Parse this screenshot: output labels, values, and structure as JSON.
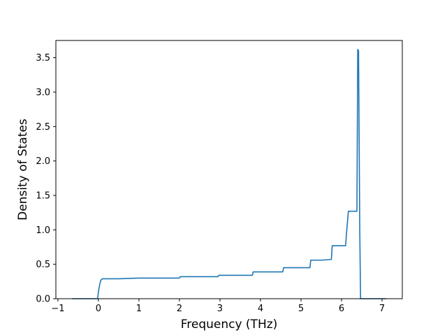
{
  "chart_data": {
    "type": "line",
    "title": "",
    "xlabel": "Frequency (THz)",
    "ylabel": "Density of States",
    "xlim": [
      -1.05,
      7.5
    ],
    "ylim": [
      0,
      3.75
    ],
    "xticks": [
      -1,
      0,
      1,
      2,
      3,
      4,
      5,
      6,
      7
    ],
    "xtick_labels": [
      "−1",
      "0",
      "1",
      "2",
      "3",
      "4",
      "5",
      "6",
      "7"
    ],
    "yticks": [
      0,
      0.5,
      1.0,
      1.5,
      2.0,
      2.5,
      3.0,
      3.5
    ],
    "ytick_labels": [
      "0.0",
      "0.5",
      "1.0",
      "1.5",
      "2.0",
      "2.5",
      "3.0",
      "3.5"
    ],
    "grid": false,
    "legend": "none",
    "series": [
      {
        "color": "#1f77b4",
        "x": [
          -0.65,
          -0.02,
          0.0,
          0.03,
          0.06,
          0.1,
          0.2,
          0.5,
          1.0,
          1.5,
          2.0,
          2.02,
          2.5,
          2.95,
          2.97,
          3.5,
          3.8,
          3.82,
          4.3,
          4.55,
          4.57,
          5.0,
          5.22,
          5.24,
          5.5,
          5.75,
          5.77,
          6.1,
          6.13,
          6.17,
          6.38,
          6.4,
          6.42,
          6.45,
          6.47,
          6.49,
          7.0,
          7.1
        ],
        "y": [
          0.0,
          0.0,
          0.1,
          0.2,
          0.27,
          0.29,
          0.29,
          0.29,
          0.3,
          0.3,
          0.3,
          0.32,
          0.32,
          0.32,
          0.34,
          0.34,
          0.34,
          0.39,
          0.39,
          0.39,
          0.45,
          0.45,
          0.45,
          0.56,
          0.56,
          0.57,
          0.77,
          0.77,
          1.0,
          1.27,
          1.27,
          3.62,
          3.6,
          1.0,
          0.0,
          0.0,
          0.0,
          0.0
        ]
      }
    ]
  }
}
